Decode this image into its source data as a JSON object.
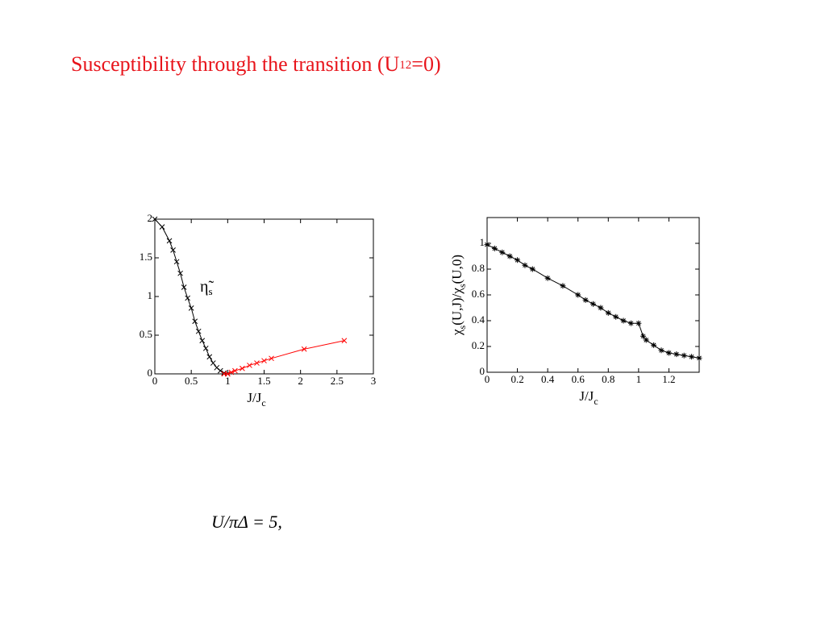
{
  "slide_title": {
    "text": "Susceptibility through the transition  (U",
    "subscript": "12",
    "suffix": "=0)"
  },
  "equation": "U/πΔ = 5,",
  "chart_data": [
    {
      "type": "line",
      "marker": "x",
      "x_label": {
        "text": "J/J",
        "subscript": "c"
      },
      "annotation": {
        "text": "η̃",
        "subscript": "s"
      },
      "xlim": [
        0,
        3
      ],
      "ylim": [
        0,
        2
      ],
      "xticks": [
        0,
        0.5,
        1,
        1.5,
        2,
        2.5,
        3
      ],
      "yticks": [
        0,
        0.5,
        1,
        1.5,
        2
      ],
      "series": [
        {
          "color": "#000000",
          "x": [
            0,
            0.1,
            0.2,
            0.25,
            0.3,
            0.35,
            0.4,
            0.45,
            0.5,
            0.55,
            0.6,
            0.65,
            0.7,
            0.75,
            0.8,
            0.85,
            0.9,
            0.95,
            1
          ],
          "values": [
            2,
            1.9,
            1.72,
            1.6,
            1.45,
            1.3,
            1.12,
            0.98,
            0.85,
            0.68,
            0.55,
            0.43,
            0.33,
            0.22,
            0.14,
            0.08,
            0.04,
            0.01,
            0
          ]
        },
        {
          "color": "#ff0000",
          "x": [
            0.95,
            1,
            1.05,
            1.1,
            1.2,
            1.3,
            1.4,
            1.5,
            1.6,
            2.05,
            2.6
          ],
          "values": [
            0,
            0,
            0.02,
            0.04,
            0.07,
            0.11,
            0.14,
            0.17,
            0.2,
            0.32,
            0.43
          ]
        }
      ]
    },
    {
      "type": "line",
      "marker": "star",
      "x_label": {
        "text": "J/J",
        "subscript": "c"
      },
      "y_label_parts": [
        "χ",
        "s",
        "(U,J)/χ",
        "s",
        "(U,0)"
      ],
      "xlim": [
        0,
        1.4
      ],
      "ylim": [
        0,
        1.2
      ],
      "xticks": [
        0,
        0.2,
        0.4,
        0.6,
        0.8,
        1,
        1.2
      ],
      "yticks": [
        0,
        0.2,
        0.4,
        0.6,
        0.8,
        1
      ],
      "series": [
        {
          "color": "#000000",
          "x": [
            0,
            0.05,
            0.1,
            0.15,
            0.2,
            0.25,
            0.3,
            0.4,
            0.5,
            0.6,
            0.65,
            0.7,
            0.75,
            0.8,
            0.85,
            0.9,
            0.95,
            1,
            1.03,
            1.05,
            1.1,
            1.15,
            1.2,
            1.25,
            1.3,
            1.35,
            1.4
          ],
          "values": [
            0.99,
            0.96,
            0.93,
            0.9,
            0.87,
            0.83,
            0.8,
            0.73,
            0.67,
            0.6,
            0.56,
            0.53,
            0.5,
            0.46,
            0.43,
            0.4,
            0.38,
            0.38,
            0.28,
            0.25,
            0.21,
            0.17,
            0.15,
            0.14,
            0.13,
            0.12,
            0.11
          ]
        }
      ]
    }
  ]
}
